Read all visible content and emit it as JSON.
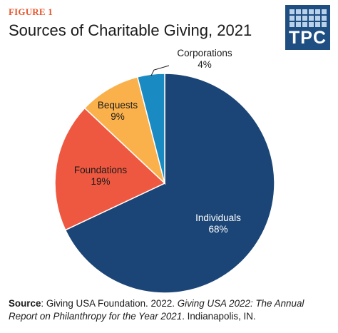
{
  "figure_label": "FIGURE 1",
  "title": "Sources of Charitable Giving, 2021",
  "logo_text": "TPC",
  "colors": {
    "label_accent": "#e4572e",
    "logo_bg": "#1f4e82",
    "individuals": "#1b4576",
    "foundations": "#ef5840",
    "bequests": "#fbb14b",
    "corporations": "#1a8bc2"
  },
  "chart_data": {
    "type": "pie",
    "slices": [
      {
        "label": "Individuals",
        "value": 68,
        "value_label": "68%"
      },
      {
        "label": "Foundations",
        "value": 19,
        "value_label": "19%"
      },
      {
        "label": "Bequests",
        "value": 9,
        "value_label": "9%"
      },
      {
        "label": "Corporations",
        "value": 4,
        "value_label": "4%"
      }
    ],
    "start": "12 o'clock",
    "direction": "clockwise"
  },
  "source": {
    "prefix": "Source",
    "text1": ": Giving USA Foundation. 2022. ",
    "title_italic": "Giving USA 2022: The Annual Report on Philanthropy for the Year 2021",
    "text2": ". Indianapolis, IN."
  }
}
